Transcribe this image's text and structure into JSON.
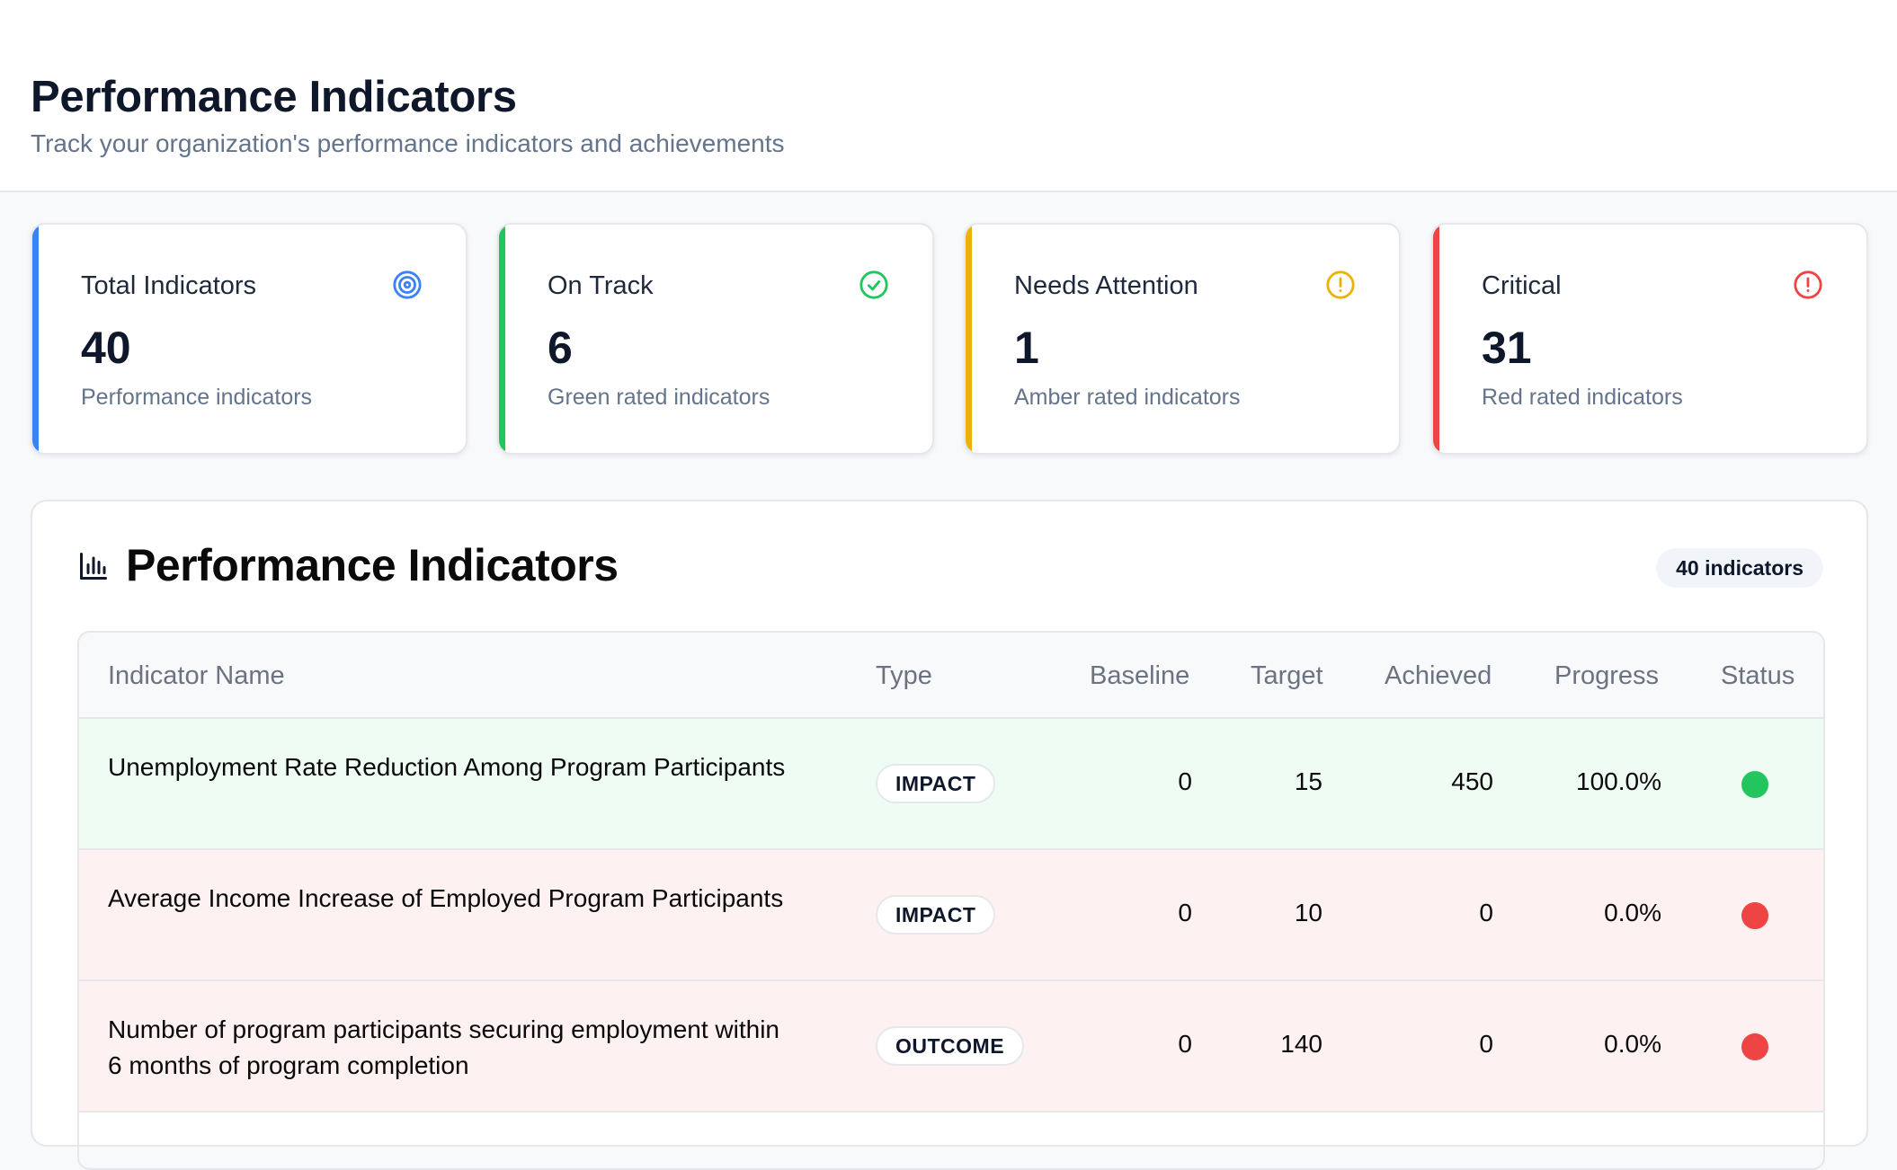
{
  "header": {
    "title": "Performance Indicators",
    "subtitle": "Track your organization's performance indicators and achievements"
  },
  "stats": [
    {
      "title": "Total Indicators",
      "value": "40",
      "desc": "Performance indicators",
      "color": "#3b82f6",
      "icon": "target-icon"
    },
    {
      "title": "On Track",
      "value": "6",
      "desc": "Green rated indicators",
      "color": "#22c55e",
      "icon": "check-circle-icon"
    },
    {
      "title": "Needs Attention",
      "value": "1",
      "desc": "Amber rated indicators",
      "color": "#eab308",
      "icon": "alert-circle-icon"
    },
    {
      "title": "Critical",
      "value": "31",
      "desc": "Red rated indicators",
      "color": "#ef4444",
      "icon": "alert-circle-icon"
    }
  ],
  "panel": {
    "title": "Performance Indicators",
    "icon": "bar-chart-icon",
    "count_badge": "40 indicators"
  },
  "table": {
    "columns": [
      "Indicator Name",
      "Type",
      "Baseline",
      "Target",
      "Achieved",
      "Progress",
      "Status"
    ],
    "rows": [
      {
        "name": "Unemployment Rate Reduction Among Program Participants",
        "type": "IMPACT",
        "baseline": "0",
        "target": "15",
        "achieved": "450",
        "progress": "100.0%",
        "status": "green"
      },
      {
        "name": "Average Income Increase of Employed Program Participants",
        "type": "IMPACT",
        "baseline": "0",
        "target": "10",
        "achieved": "0",
        "progress": "0.0%",
        "status": "red"
      },
      {
        "name": "Number of program participants securing employment within 6 months of program completion",
        "type": "OUTCOME",
        "baseline": "0",
        "target": "140",
        "achieved": "0",
        "progress": "0.0%",
        "status": "red"
      }
    ]
  },
  "colors": {
    "green_status": "#22c55e",
    "red_status": "#ef4444",
    "green_row_bg": "#effcf3",
    "red_row_bg": "#fdf1f1"
  }
}
